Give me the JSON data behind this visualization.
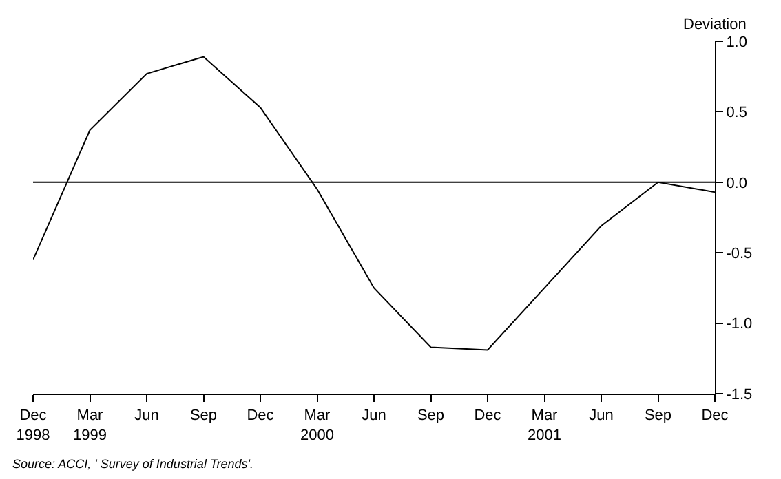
{
  "chart_data": {
    "type": "line",
    "categories": [
      "Dec\n1998",
      "Mar\n1999",
      "Jun",
      "Sep",
      "Dec",
      "Mar\n2000",
      "Jun",
      "Sep",
      "Dec",
      "Mar\n2001",
      "Jun",
      "Sep",
      "Dec"
    ],
    "series": [
      {
        "color": "#000000",
        "values": [
          -0.55,
          0.37,
          0.77,
          0.89,
          0.53,
          -0.05,
          -0.75,
          -1.17,
          -1.19,
          -0.75,
          -0.31,
          0.0,
          -0.07
        ]
      }
    ],
    "ylabel": "Deviation",
    "ylim": [
      -1.5,
      1.0
    ],
    "yticks": [
      {
        "value": 1.0,
        "label": "1.0"
      },
      {
        "value": 0.5,
        "label": "0.5"
      },
      {
        "value": 0.0,
        "label": "0.0"
      },
      {
        "value": -0.5,
        "label": "-0.5"
      },
      {
        "value": -1.0,
        "label": "-1.0"
      },
      {
        "value": -1.5,
        "label": "-1.5"
      }
    ],
    "ref_lines": [
      {
        "axis": "y",
        "value": 0.0,
        "color": "#000000"
      }
    ],
    "annotations": [
      "Source: ACCI, ' Survey of Industrial Trends'."
    ],
    "grid": false,
    "legend": false,
    "marker": "none",
    "line_style": "solid"
  }
}
